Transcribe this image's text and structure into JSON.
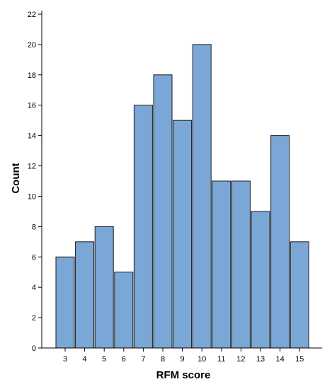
{
  "chart_data": {
    "type": "bar",
    "title": "",
    "xlabel": "RFM score",
    "ylabel": "Count",
    "categories": [
      "3",
      "4",
      "5",
      "6",
      "7",
      "8",
      "9",
      "10",
      "11",
      "12",
      "13",
      "14",
      "15"
    ],
    "values": [
      6,
      7,
      8,
      5,
      16,
      18,
      15,
      20,
      11,
      11,
      9,
      14,
      7
    ],
    "ylim": [
      0,
      22
    ],
    "yticks": [
      0,
      2,
      4,
      6,
      8,
      10,
      12,
      14,
      16,
      18,
      20,
      22
    ],
    "grid": false,
    "legend": "none",
    "bar_color": "#7BA7D6",
    "bar_edge_color": "#1a1a1a",
    "background": "#ffffff"
  }
}
